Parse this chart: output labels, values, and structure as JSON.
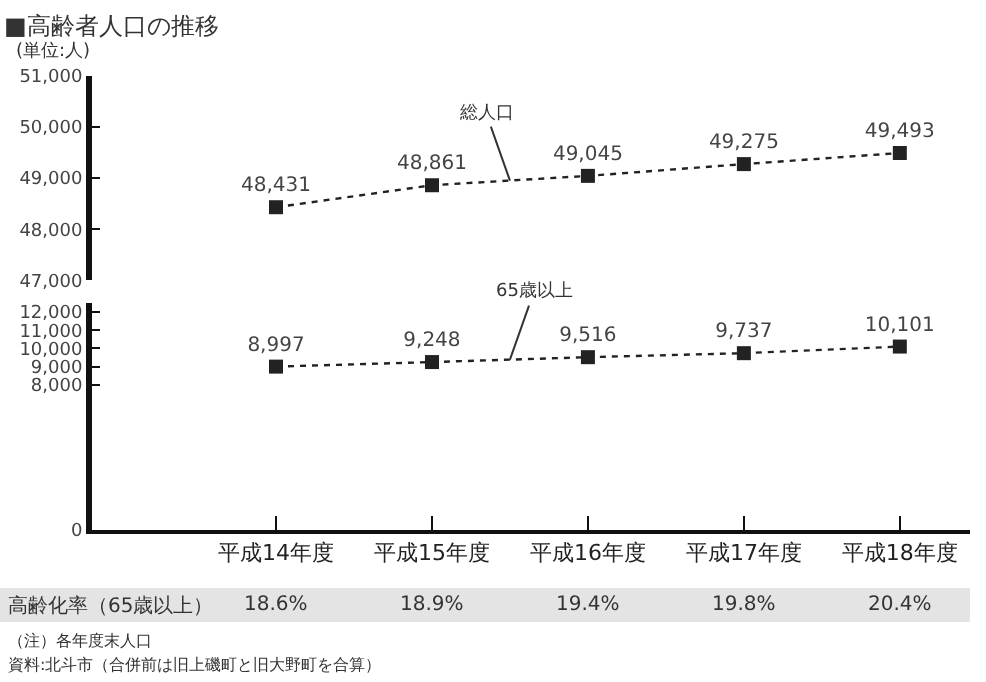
{
  "chart_data": [
    {
      "type": "line",
      "title": "■高齢者人口の推移",
      "ylabel": "(単位:人)",
      "categories": [
        "平成14年度",
        "平成15年度",
        "平成16年度",
        "平成17年度",
        "平成18年度"
      ],
      "series": [
        {
          "name": "総人口",
          "color": "#222222",
          "values": [
            48431,
            48861,
            49045,
            49275,
            49493
          ],
          "value_labels": [
            "48,431",
            "48,861",
            "49,045",
            "49,275",
            "49,493"
          ]
        }
      ],
      "ylim": [
        47000,
        51000
      ],
      "yticks": [
        {
          "value": 47000,
          "label": "47,000"
        },
        {
          "value": 48000,
          "label": "48,000"
        },
        {
          "value": 49000,
          "label": "49,000"
        },
        {
          "value": 50000,
          "label": "50,000"
        },
        {
          "value": 51000,
          "label": "51,000"
        }
      ],
      "tick_labels": "y",
      "marker": "square",
      "line_style": "dotted"
    },
    {
      "type": "line",
      "categories": [
        "平成14年度",
        "平成15年度",
        "平成16年度",
        "平成17年度",
        "平成18年度"
      ],
      "series": [
        {
          "name": "65歳以上",
          "color": "#222222",
          "values": [
            8997,
            9248,
            9516,
            9737,
            10101
          ],
          "value_labels": [
            "8,997",
            "9,248",
            "9,516",
            "9,737",
            "10,101"
          ]
        }
      ],
      "ylim": [
        0,
        12500
      ],
      "yticks": [
        0,
        {
          "value": 8000,
          "label": "8,000"
        },
        {
          "value": 9000,
          "label": "9,000"
        },
        {
          "value": 10000,
          "label": "10,000"
        },
        {
          "value": 11000,
          "label": "11,000"
        },
        {
          "value": 12000,
          "label": "12,000"
        }
      ],
      "marker": "square",
      "line_style": "dotted",
      "annotations": [
        "高齢化率（65歳以上）",
        "18.6%",
        "18.9%",
        "19.4%",
        "19.8%",
        "20.4%",
        "（注）各年度末人口",
        "資料:北斗市（合併前は旧上磯町と旧大野町を合算）"
      ]
    }
  ]
}
